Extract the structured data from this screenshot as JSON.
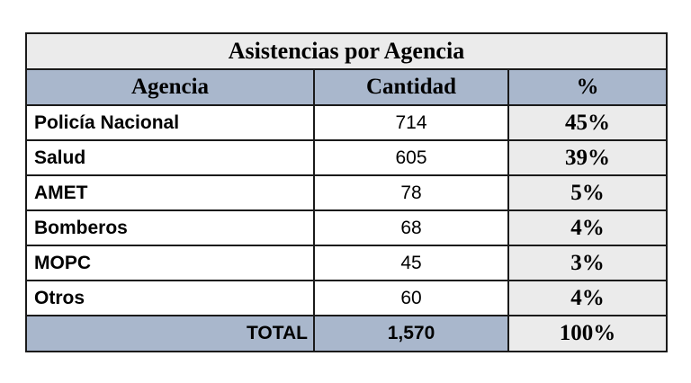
{
  "chart_data": {
    "type": "table",
    "title": "Asistencias por Agencia",
    "columns": [
      "Agencia",
      "Cantidad",
      "%"
    ],
    "rows": [
      {
        "agency": "Policía Nacional",
        "count": "714",
        "pct": "45%"
      },
      {
        "agency": "Salud",
        "count": "605",
        "pct": "39%"
      },
      {
        "agency": "AMET",
        "count": "78",
        "pct": "5%"
      },
      {
        "agency": "Bomberos",
        "count": "68",
        "pct": "4%"
      },
      {
        "agency": "MOPC",
        "count": "45",
        "pct": "3%"
      },
      {
        "agency": "Otros",
        "count": "60",
        "pct": "4%"
      }
    ],
    "total": {
      "label": "TOTAL",
      "count": "1,570",
      "pct": "100%"
    }
  },
  "colors": {
    "header_fill": "#a9b7cc",
    "title_fill": "#ebebeb",
    "pct_fill": "#ebebeb",
    "border": "#1a1a1a"
  }
}
